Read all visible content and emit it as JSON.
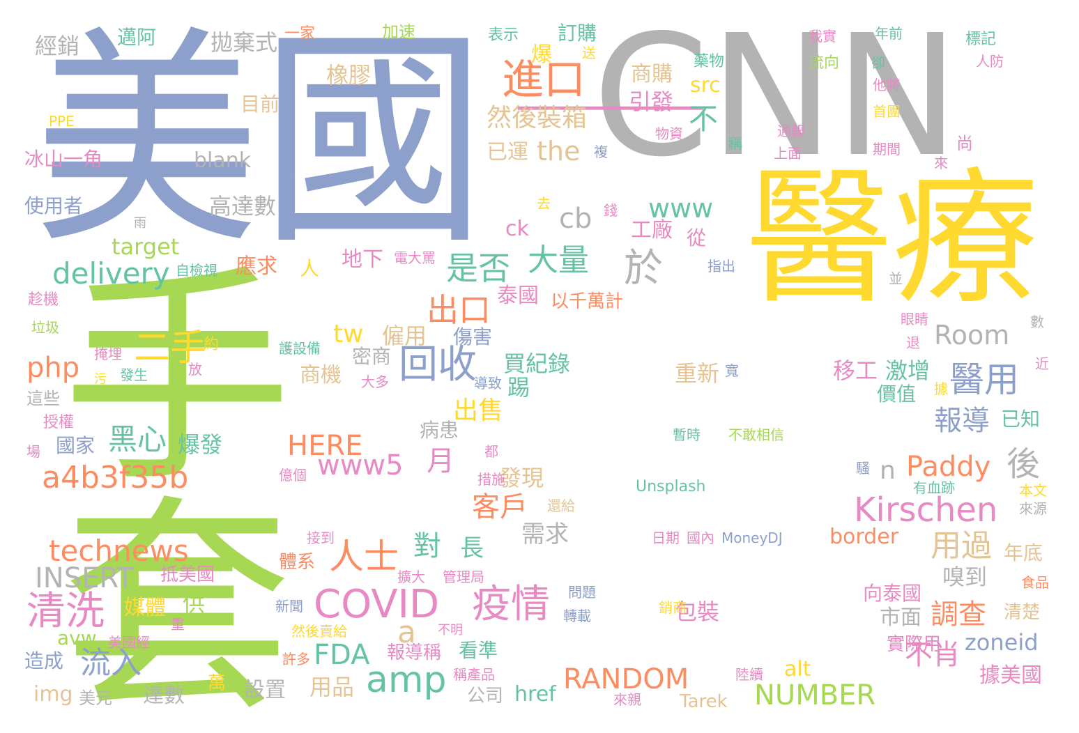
{
  "palette": {
    "green": "#a6d854",
    "blue": "#8da0cb",
    "gray": "#b3b3b3",
    "yellow": "#ffd92f",
    "orange": "#fc8d62",
    "teal": "#66c2a5",
    "pink": "#e78ac3",
    "tan": "#e5c494"
  },
  "words": [
    {
      "text": "手套",
      "color": "green"
    },
    {
      "text": "美國",
      "color": "blue"
    },
    {
      "text": "CNN",
      "color": "gray"
    },
    {
      "text": "醫療",
      "color": "yellow"
    },
    {
      "text": "一",
      "color": "pink"
    },
    {
      "text": "進口",
      "color": "orange"
    },
    {
      "text": "然後裝箱",
      "color": "tan"
    },
    {
      "text": "the",
      "color": "tan"
    },
    {
      "text": "www",
      "color": "teal"
    },
    {
      "text": "cb",
      "color": "gray"
    },
    {
      "text": "大量",
      "color": "teal"
    },
    {
      "text": "是否",
      "color": "teal"
    },
    {
      "text": "出口",
      "color": "orange"
    },
    {
      "text": "於",
      "color": "gray"
    },
    {
      "text": "delivery",
      "color": "teal"
    },
    {
      "text": "php",
      "color": "orange"
    },
    {
      "text": "二手",
      "color": "yellow"
    },
    {
      "text": "回收",
      "color": "blue"
    },
    {
      "text": "黑心",
      "color": "teal"
    },
    {
      "text": "爆發",
      "color": "teal"
    },
    {
      "text": "a4b3f35b",
      "color": "orange"
    },
    {
      "text": "www5",
      "color": "pink"
    },
    {
      "text": "HERE",
      "color": "orange"
    },
    {
      "text": "technews",
      "color": "orange"
    },
    {
      "text": "INSERT",
      "color": "gray"
    },
    {
      "text": "人士",
      "color": "orange"
    },
    {
      "text": "COVID",
      "color": "pink"
    },
    {
      "text": "疫情",
      "color": "pink"
    },
    {
      "text": "清洗",
      "color": "pink"
    },
    {
      "text": "amp",
      "color": "teal"
    },
    {
      "text": "流入",
      "color": "blue"
    },
    {
      "text": "FDA",
      "color": "teal"
    },
    {
      "text": "RANDOM",
      "color": "orange"
    },
    {
      "text": "NUMBER",
      "color": "green"
    },
    {
      "text": "Kirschen",
      "color": "pink"
    },
    {
      "text": "Paddy",
      "color": "orange"
    },
    {
      "text": "Room",
      "color": "gray"
    },
    {
      "text": "醫用",
      "color": "blue"
    },
    {
      "text": "報導",
      "color": "blue"
    },
    {
      "text": "調查",
      "color": "orange"
    },
    {
      "text": "用過",
      "color": "tan"
    },
    {
      "text": "客戶",
      "color": "orange"
    },
    {
      "text": "對",
      "color": "teal"
    },
    {
      "text": "長",
      "color": "teal"
    },
    {
      "text": "後",
      "color": "gray"
    },
    {
      "text": "不肖",
      "color": "pink"
    },
    {
      "text": "據美國",
      "color": "pink"
    },
    {
      "text": "經銷",
      "color": "gray"
    },
    {
      "text": "拋棄式",
      "color": "gray"
    },
    {
      "text": "邁阿",
      "color": "teal"
    },
    {
      "text": "加速",
      "color": "green"
    },
    {
      "text": "一家",
      "color": "orange"
    },
    {
      "text": "表示",
      "color": "teal"
    },
    {
      "text": "訂購",
      "color": "teal"
    },
    {
      "text": "橡膠",
      "color": "tan"
    },
    {
      "text": "商購",
      "color": "tan"
    },
    {
      "text": "引發",
      "color": "pink"
    },
    {
      "text": "src",
      "color": "yellow"
    },
    {
      "text": "不",
      "color": "teal"
    },
    {
      "text": "目前",
      "color": "tan"
    },
    {
      "text": "PPE",
      "color": "yellow"
    },
    {
      "text": "冰山一角",
      "color": "pink"
    },
    {
      "text": "blank",
      "color": "gray"
    },
    {
      "text": "使用者",
      "color": "blue"
    },
    {
      "text": "高達數",
      "color": "gray"
    },
    {
      "text": "已運",
      "color": "tan"
    },
    {
      "text": "target",
      "color": "green"
    },
    {
      "text": "工廠",
      "color": "pink"
    },
    {
      "text": "ck",
      "color": "pink"
    },
    {
      "text": "應求",
      "color": "orange"
    },
    {
      "text": "泰國",
      "color": "pink"
    },
    {
      "text": "以千萬計",
      "color": "orange"
    },
    {
      "text": "地下",
      "color": "pink"
    },
    {
      "text": "tw",
      "color": "yellow"
    },
    {
      "text": "僱用",
      "color": "tan"
    },
    {
      "text": "傷害",
      "color": "blue"
    },
    {
      "text": "密商",
      "color": "gray"
    },
    {
      "text": "買紀錄",
      "color": "teal"
    },
    {
      "text": "商機",
      "color": "tan"
    },
    {
      "text": "國家",
      "color": "blue"
    },
    {
      "text": "出售",
      "color": "yellow"
    },
    {
      "text": "月",
      "color": "pink"
    },
    {
      "text": "發現",
      "color": "tan"
    },
    {
      "text": "需求",
      "color": "gray"
    },
    {
      "text": "移工",
      "color": "pink"
    },
    {
      "text": "激增",
      "color": "teal"
    },
    {
      "text": "重新",
      "color": "tan"
    },
    {
      "text": "價值",
      "color": "teal"
    },
    {
      "text": "已知",
      "color": "teal"
    },
    {
      "text": "嗅到",
      "color": "gray"
    },
    {
      "text": "年底",
      "color": "tan"
    },
    {
      "text": "市面",
      "color": "gray"
    },
    {
      "text": "向泰國",
      "color": "pink"
    },
    {
      "text": "清楚",
      "color": "tan"
    },
    {
      "text": "zoneid",
      "color": "blue"
    },
    {
      "text": "實際用",
      "color": "pink"
    },
    {
      "text": "border",
      "color": "orange"
    },
    {
      "text": "包裝",
      "color": "pink"
    },
    {
      "text": "alt",
      "color": "yellow"
    },
    {
      "text": "href",
      "color": "teal"
    },
    {
      "text": "Tarek",
      "color": "tan"
    },
    {
      "text": "看準",
      "color": "teal"
    },
    {
      "text": "報導稱",
      "color": "pink"
    },
    {
      "text": "用品",
      "color": "tan"
    },
    {
      "text": "公司",
      "color": "gray"
    },
    {
      "text": "設置",
      "color": "gray"
    },
    {
      "text": "達數",
      "color": "gray"
    },
    {
      "text": "img",
      "color": "tan"
    },
    {
      "text": "美元",
      "color": "gray"
    },
    {
      "text": "造成",
      "color": "blue"
    },
    {
      "text": "avw",
      "color": "green"
    },
    {
      "text": "媒體",
      "color": "yellow"
    },
    {
      "text": "供",
      "color": "green"
    },
    {
      "text": "抵美國",
      "color": "pink"
    },
    {
      "text": "體系",
      "color": "orange"
    },
    {
      "text": "擴大",
      "color": "pink"
    },
    {
      "text": "管理局",
      "color": "pink"
    },
    {
      "text": "Unsplash",
      "color": "teal"
    },
    {
      "text": "MoneyDJ",
      "color": "blue"
    },
    {
      "text": "日期",
      "color": "pink"
    },
    {
      "text": "國內",
      "color": "pink"
    },
    {
      "text": "接到",
      "color": "pink"
    },
    {
      "text": "措施",
      "color": "pink"
    },
    {
      "text": "暫時",
      "color": "teal"
    },
    {
      "text": "不敢相信",
      "color": "green"
    },
    {
      "text": "新聞",
      "color": "blue"
    },
    {
      "text": "轉載",
      "color": "blue"
    },
    {
      "text": "問題",
      "color": "blue"
    },
    {
      "text": "銷商",
      "color": "yellow"
    },
    {
      "text": "然後賣給",
      "color": "yellow"
    },
    {
      "text": "不明",
      "color": "pink"
    },
    {
      "text": "許多",
      "color": "orange"
    },
    {
      "text": "稱產品",
      "color": "pink"
    },
    {
      "text": "陸續",
      "color": "pink"
    },
    {
      "text": "來親",
      "color": "pink"
    },
    {
      "text": "美國經",
      "color": "pink"
    },
    {
      "text": "萬",
      "color": "yellow"
    },
    {
      "text": "爆",
      "color": "yellow"
    },
    {
      "text": "送",
      "color": "yellow"
    },
    {
      "text": "藥物",
      "color": "teal"
    },
    {
      "text": "物資",
      "color": "pink"
    },
    {
      "text": "複",
      "color": "blue"
    },
    {
      "text": "稱",
      "color": "teal"
    },
    {
      "text": "通報",
      "color": "pink"
    },
    {
      "text": "上面",
      "color": "pink"
    },
    {
      "text": "我實",
      "color": "pink"
    },
    {
      "text": "流向",
      "color": "green"
    },
    {
      "text": "年前",
      "color": "teal"
    },
    {
      "text": "卻",
      "color": "teal"
    },
    {
      "text": "他將",
      "color": "pink"
    },
    {
      "text": "首團",
      "color": "yellow"
    },
    {
      "text": "期間",
      "color": "pink"
    },
    {
      "text": "標記",
      "color": "teal"
    },
    {
      "text": "人防",
      "color": "pink"
    },
    {
      "text": "尚",
      "color": "pink"
    },
    {
      "text": "來",
      "color": "pink"
    },
    {
      "text": "去",
      "color": "yellow"
    },
    {
      "text": "錢",
      "color": "pink"
    },
    {
      "text": "雨",
      "color": "gray"
    },
    {
      "text": "人",
      "color": "yellow"
    },
    {
      "text": "電大罵",
      "color": "pink"
    },
    {
      "text": "自檢視",
      "color": "teal"
    },
    {
      "text": "從",
      "color": "pink"
    },
    {
      "text": "指出",
      "color": "blue"
    },
    {
      "text": "並",
      "color": "gray"
    },
    {
      "text": "眼睛",
      "color": "pink"
    },
    {
      "text": "數",
      "color": "gray"
    },
    {
      "text": "退",
      "color": "pink"
    },
    {
      "text": "近",
      "color": "pink"
    },
    {
      "text": "寬",
      "color": "blue"
    },
    {
      "text": "據",
      "color": "yellow"
    },
    {
      "text": "趁機",
      "color": "pink"
    },
    {
      "text": "垃圾",
      "color": "green"
    },
    {
      "text": "掩埋",
      "color": "pink"
    },
    {
      "text": "污",
      "color": "yellow"
    },
    {
      "text": "發生",
      "color": "teal"
    },
    {
      "text": "約",
      "color": "yellow"
    },
    {
      "text": "放",
      "color": "pink"
    },
    {
      "text": "護設備",
      "color": "teal"
    },
    {
      "text": "導致",
      "color": "blue"
    },
    {
      "text": "大多",
      "color": "pink"
    },
    {
      "text": "授權",
      "color": "pink"
    },
    {
      "text": "這些",
      "color": "gray"
    },
    {
      "text": "場",
      "color": "pink"
    },
    {
      "text": "億個",
      "color": "pink"
    },
    {
      "text": "都",
      "color": "pink"
    },
    {
      "text": "有血跡",
      "color": "teal"
    },
    {
      "text": "騷",
      "color": "blue"
    },
    {
      "text": "本文",
      "color": "yellow"
    },
    {
      "text": "來源",
      "color": "gray"
    },
    {
      "text": "還給",
      "color": "tan"
    },
    {
      "text": "食品",
      "color": "orange"
    },
    {
      "text": "重",
      "color": "pink"
    },
    {
      "text": "踢",
      "color": "teal"
    },
    {
      "text": "病患",
      "color": "gray"
    },
    {
      "text": "n",
      "color": "gray"
    },
    {
      "text": "a",
      "color": "tan"
    }
  ]
}
